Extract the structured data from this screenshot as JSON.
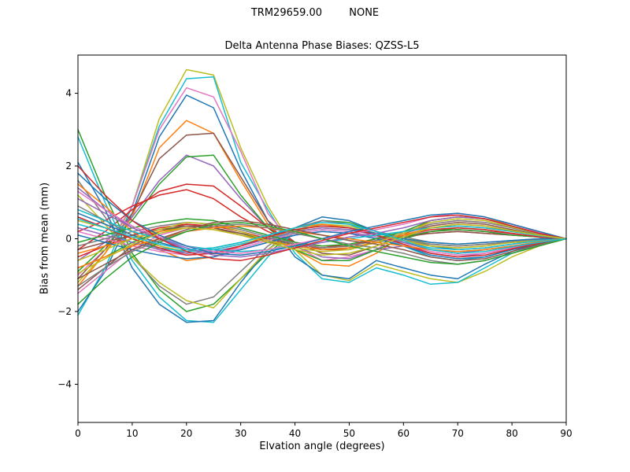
{
  "header": {
    "model": "TRM29659.00",
    "radome": "NONE"
  },
  "chart_data": {
    "type": "line",
    "title": "Delta Antenna Phase Biases: QZSS-L5",
    "xlabel": "Elvation angle (degrees)",
    "ylabel": "Bias from mean (mm)",
    "xlim": [
      0,
      90
    ],
    "ylim": [
      -5.05,
      5.05
    ],
    "xticks": [
      0,
      10,
      20,
      30,
      40,
      50,
      60,
      70,
      80,
      90
    ],
    "yticks": [
      -4,
      -2,
      0,
      2,
      4
    ],
    "grid": false,
    "legend": "none",
    "x": [
      0,
      5,
      10,
      15,
      20,
      25,
      30,
      35,
      40,
      45,
      50,
      55,
      60,
      65,
      70,
      75,
      80,
      85,
      90
    ],
    "series": [
      {
        "color": "#bcbd22",
        "values": [
          -1.2,
          -0.4,
          0.9,
          3.3,
          4.65,
          4.5,
          2.5,
          0.9,
          -0.3,
          -1.0,
          -1.15,
          -0.7,
          -0.9,
          -1.1,
          -1.2,
          -0.9,
          -0.5,
          -0.2,
          0
        ]
      },
      {
        "color": "#17becf",
        "values": [
          -2.1,
          -0.8,
          0.9,
          3.1,
          4.4,
          4.45,
          2.1,
          0.8,
          -0.4,
          -1.1,
          -1.2,
          -0.8,
          -1.0,
          -1.25,
          -1.2,
          -0.8,
          -0.4,
          -0.15,
          0
        ]
      },
      {
        "color": "#e377c2",
        "values": [
          -1.0,
          -0.3,
          0.9,
          3.0,
          4.15,
          3.9,
          2.4,
          0.7,
          -0.2,
          -0.6,
          -0.5,
          -0.3,
          0.2,
          0.4,
          0.5,
          0.45,
          0.3,
          0.15,
          0
        ]
      },
      {
        "color": "#1f77b4",
        "values": [
          -2.0,
          -0.9,
          0.7,
          2.8,
          3.95,
          3.6,
          1.9,
          0.5,
          -0.5,
          -1.0,
          -1.1,
          -0.6,
          -0.8,
          -1.0,
          -1.1,
          -0.7,
          -0.35,
          -0.1,
          0
        ]
      },
      {
        "color": "#ff7f0e",
        "values": [
          -1.3,
          -0.4,
          0.6,
          2.5,
          3.25,
          2.9,
          1.6,
          0.4,
          -0.3,
          -0.7,
          -0.75,
          -0.4,
          0.1,
          0.5,
          0.6,
          0.55,
          0.4,
          0.2,
          0
        ]
      },
      {
        "color": "#8c564b",
        "values": [
          -1.1,
          -0.3,
          0.7,
          2.2,
          2.85,
          2.9,
          1.7,
          0.5,
          -0.1,
          -0.4,
          -0.45,
          -0.2,
          0.1,
          0.3,
          0.35,
          0.3,
          0.2,
          0.1,
          0
        ]
      },
      {
        "color": "#9467bd",
        "values": [
          -0.6,
          -0.1,
          0.6,
          1.6,
          2.3,
          2.0,
          1.1,
          0.3,
          -0.2,
          -0.5,
          -0.55,
          -0.3,
          -0.2,
          -0.4,
          -0.5,
          -0.4,
          -0.25,
          -0.1,
          0
        ]
      },
      {
        "color": "#2ca02c",
        "values": [
          -0.9,
          -0.2,
          0.5,
          1.5,
          2.25,
          2.3,
          1.2,
          0.3,
          -0.3,
          -0.6,
          -0.6,
          -0.3,
          0.0,
          0.2,
          0.3,
          0.25,
          0.15,
          0.05,
          0
        ]
      },
      {
        "color": "#d62728",
        "values": [
          -0.3,
          0.2,
          0.8,
          1.3,
          1.5,
          1.45,
          0.9,
          0.3,
          -0.1,
          -0.3,
          -0.3,
          -0.1,
          0.1,
          0.2,
          0.25,
          0.2,
          0.15,
          0.05,
          0
        ]
      },
      {
        "color": "#d62728",
        "values": [
          0.2,
          0.5,
          0.9,
          1.2,
          1.35,
          1.1,
          0.6,
          0.2,
          -0.1,
          -0.2,
          -0.2,
          0.0,
          0.1,
          0.15,
          0.2,
          0.15,
          0.1,
          0.05,
          0
        ]
      },
      {
        "color": "#2ca02c",
        "values": [
          3.0,
          1.2,
          -0.4,
          -1.4,
          -2.0,
          -1.8,
          -1.1,
          -0.4,
          0.2,
          0.5,
          0.45,
          0.2,
          -0.1,
          -0.3,
          -0.4,
          -0.3,
          -0.2,
          -0.1,
          0
        ]
      },
      {
        "color": "#17becf",
        "values": [
          2.8,
          1.0,
          -0.6,
          -1.6,
          -2.25,
          -2.3,
          -1.4,
          -0.5,
          0.2,
          0.5,
          0.4,
          0.1,
          -0.2,
          -0.5,
          -0.6,
          -0.5,
          -0.3,
          -0.1,
          0
        ]
      },
      {
        "color": "#1f77b4",
        "values": [
          2.1,
          0.8,
          -0.8,
          -1.8,
          -2.3,
          -2.25,
          -1.2,
          -0.3,
          0.3,
          0.6,
          0.5,
          0.2,
          0.0,
          -0.2,
          -0.3,
          -0.25,
          -0.15,
          -0.05,
          0
        ]
      },
      {
        "color": "#7f7f7f",
        "values": [
          1.6,
          0.6,
          -0.5,
          -1.3,
          -1.8,
          -1.6,
          -0.9,
          -0.2,
          0.3,
          0.5,
          0.4,
          0.2,
          0.05,
          -0.1,
          -0.15,
          -0.1,
          -0.05,
          0.0,
          0
        ]
      },
      {
        "color": "#bcbd22",
        "values": [
          1.2,
          0.4,
          -0.5,
          -1.2,
          -1.7,
          -1.9,
          -1.1,
          -0.3,
          0.2,
          0.4,
          0.35,
          0.15,
          0.0,
          -0.15,
          -0.2,
          -0.15,
          -0.1,
          -0.05,
          0
        ]
      },
      {
        "color": "#ff7f0e",
        "values": [
          1.5,
          0.9,
          0.2,
          -0.3,
          -0.6,
          -0.5,
          -0.2,
          0.1,
          0.3,
          0.4,
          0.3,
          0.1,
          -0.1,
          -0.2,
          -0.25,
          -0.2,
          -0.1,
          -0.05,
          0
        ]
      },
      {
        "color": "#9467bd",
        "values": [
          1.4,
          0.8,
          0.3,
          0.0,
          -0.3,
          -0.4,
          -0.3,
          -0.1,
          0.1,
          0.2,
          0.15,
          0.05,
          -0.05,
          -0.15,
          -0.2,
          -0.15,
          -0.1,
          -0.05,
          0
        ]
      },
      {
        "color": "#8c564b",
        "values": [
          -1.4,
          -0.8,
          -0.2,
          0.2,
          0.4,
          0.3,
          0.1,
          -0.1,
          -0.2,
          -0.3,
          -0.25,
          -0.1,
          0.05,
          0.15,
          0.2,
          0.15,
          0.1,
          0.05,
          0
        ]
      },
      {
        "color": "#e377c2",
        "values": [
          -1.5,
          -0.9,
          -0.3,
          0.1,
          0.3,
          0.4,
          0.3,
          0.1,
          -0.1,
          -0.25,
          -0.2,
          -0.05,
          0.1,
          0.2,
          0.25,
          0.2,
          0.12,
          0.05,
          0
        ]
      },
      {
        "color": "#7f7f7f",
        "values": [
          0.9,
          0.5,
          0.1,
          -0.2,
          -0.4,
          -0.35,
          -0.2,
          0.0,
          0.2,
          0.3,
          0.25,
          0.1,
          -0.05,
          -0.15,
          -0.2,
          -0.15,
          -0.08,
          -0.03,
          0
        ]
      },
      {
        "color": "#1f77b4",
        "values": [
          0.7,
          0.4,
          0.1,
          -0.1,
          -0.3,
          -0.25,
          -0.1,
          0.1,
          0.25,
          0.35,
          0.3,
          0.15,
          0.0,
          -0.1,
          -0.15,
          -0.1,
          -0.05,
          0.0,
          0
        ]
      },
      {
        "color": "#2ca02c",
        "values": [
          -0.8,
          -0.5,
          -0.1,
          0.2,
          0.35,
          0.3,
          0.15,
          -0.05,
          -0.2,
          -0.3,
          -0.25,
          -0.1,
          0.05,
          0.2,
          0.25,
          0.2,
          0.1,
          0.05,
          0
        ]
      },
      {
        "color": "#d62728",
        "values": [
          -0.5,
          -0.2,
          0.1,
          0.3,
          0.4,
          0.35,
          0.2,
          0.0,
          -0.15,
          -0.25,
          -0.2,
          -0.05,
          0.1,
          0.25,
          0.3,
          0.25,
          0.15,
          0.05,
          0
        ]
      },
      {
        "color": "#bcbd22",
        "values": [
          0.5,
          0.3,
          0.0,
          -0.2,
          -0.35,
          -0.3,
          -0.15,
          0.05,
          0.2,
          0.3,
          0.25,
          0.1,
          -0.05,
          -0.2,
          -0.25,
          -0.2,
          -0.1,
          -0.05,
          0
        ]
      },
      {
        "color": "#17becf",
        "values": [
          0.4,
          0.2,
          -0.1,
          -0.25,
          -0.35,
          -0.3,
          -0.15,
          0.0,
          0.15,
          0.25,
          0.2,
          0.05,
          -0.1,
          -0.25,
          -0.3,
          -0.25,
          -0.15,
          -0.05,
          0
        ]
      },
      {
        "color": "#ff7f0e",
        "values": [
          -0.4,
          -0.2,
          0.0,
          0.2,
          0.3,
          0.25,
          0.1,
          -0.05,
          -0.2,
          -0.3,
          -0.25,
          -0.1,
          0.1,
          0.3,
          0.4,
          0.35,
          0.2,
          0.1,
          0
        ]
      },
      {
        "color": "#9467bd",
        "values": [
          0.3,
          0.1,
          -0.1,
          -0.3,
          -0.4,
          -0.35,
          -0.2,
          0.0,
          0.2,
          0.3,
          0.25,
          0.1,
          -0.1,
          -0.3,
          -0.4,
          -0.3,
          -0.2,
          -0.1,
          0
        ]
      },
      {
        "color": "#8c564b",
        "values": [
          -0.3,
          -0.1,
          0.1,
          0.25,
          0.35,
          0.3,
          0.15,
          0.0,
          -0.15,
          -0.25,
          -0.2,
          -0.05,
          0.15,
          0.35,
          0.45,
          0.4,
          0.25,
          0.1,
          0
        ]
      },
      {
        "color": "#e377c2",
        "values": [
          0.2,
          0.0,
          -0.2,
          -0.35,
          -0.45,
          -0.4,
          -0.25,
          -0.05,
          0.15,
          0.25,
          0.2,
          0.05,
          -0.15,
          -0.35,
          -0.45,
          -0.4,
          -0.25,
          -0.1,
          0
        ]
      },
      {
        "color": "#7f7f7f",
        "values": [
          -0.2,
          0.0,
          0.2,
          0.35,
          0.45,
          0.4,
          0.25,
          0.05,
          -0.15,
          -0.25,
          -0.2,
          -0.05,
          0.15,
          0.4,
          0.5,
          0.45,
          0.3,
          0.12,
          0
        ]
      },
      {
        "color": "#1f77b4",
        "values": [
          0.1,
          -0.1,
          -0.3,
          -0.45,
          -0.55,
          -0.5,
          -0.3,
          -0.1,
          0.1,
          0.2,
          0.15,
          0.0,
          -0.2,
          -0.45,
          -0.55,
          -0.5,
          -0.3,
          -0.12,
          0
        ]
      },
      {
        "color": "#2ca02c",
        "values": [
          -0.1,
          0.1,
          0.3,
          0.45,
          0.55,
          0.5,
          0.3,
          0.1,
          -0.1,
          -0.2,
          -0.15,
          0.0,
          0.2,
          0.5,
          0.6,
          0.55,
          0.35,
          0.15,
          0
        ]
      },
      {
        "color": "#d62728",
        "values": [
          0.6,
          0.3,
          0.0,
          -0.25,
          -0.45,
          -0.4,
          -0.2,
          0.05,
          0.25,
          0.35,
          0.3,
          0.1,
          -0.15,
          -0.4,
          -0.5,
          -0.45,
          -0.28,
          -0.12,
          0
        ]
      },
      {
        "color": "#bcbd22",
        "values": [
          -0.6,
          -0.3,
          0.0,
          0.25,
          0.45,
          0.4,
          0.2,
          -0.05,
          -0.25,
          -0.35,
          -0.3,
          -0.1,
          0.15,
          0.45,
          0.55,
          0.5,
          0.32,
          0.14,
          0
        ]
      },
      {
        "color": "#17becf",
        "values": [
          0.8,
          0.5,
          0.2,
          0.0,
          -0.2,
          -0.3,
          -0.35,
          -0.3,
          -0.2,
          -0.1,
          0.0,
          0.1,
          0.2,
          0.3,
          0.35,
          0.3,
          0.2,
          0.08,
          0
        ]
      },
      {
        "color": "#ff7f0e",
        "values": [
          -0.8,
          -0.5,
          -0.2,
          0.0,
          0.2,
          0.3,
          0.35,
          0.3,
          0.2,
          0.1,
          0.0,
          -0.1,
          -0.2,
          -0.3,
          -0.35,
          -0.3,
          -0.2,
          -0.08,
          0
        ]
      },
      {
        "color": "#9467bd",
        "values": [
          1.1,
          0.7,
          0.3,
          0.0,
          -0.25,
          -0.45,
          -0.5,
          -0.4,
          -0.25,
          -0.1,
          0.05,
          0.15,
          0.3,
          0.5,
          0.6,
          0.55,
          0.35,
          0.15,
          0
        ]
      },
      {
        "color": "#8c564b",
        "values": [
          -1.1,
          -0.7,
          -0.3,
          0.0,
          0.25,
          0.45,
          0.5,
          0.4,
          0.25,
          0.1,
          -0.05,
          -0.15,
          -0.3,
          -0.5,
          -0.6,
          -0.55,
          -0.35,
          -0.15,
          0
        ]
      },
      {
        "color": "#e377c2",
        "values": [
          1.3,
          0.8,
          0.35,
          0.05,
          -0.2,
          -0.35,
          -0.4,
          -0.3,
          -0.15,
          0.0,
          0.15,
          0.25,
          0.4,
          0.6,
          0.7,
          0.6,
          0.4,
          0.18,
          0
        ]
      },
      {
        "color": "#7f7f7f",
        "values": [
          -1.3,
          -0.8,
          -0.35,
          -0.05,
          0.2,
          0.35,
          0.4,
          0.3,
          0.15,
          0.0,
          -0.15,
          -0.25,
          -0.4,
          -0.6,
          -0.7,
          -0.6,
          -0.4,
          -0.18,
          0
        ]
      },
      {
        "color": "#1f77b4",
        "values": [
          1.8,
          1.1,
          0.5,
          0.1,
          -0.2,
          -0.4,
          -0.45,
          -0.35,
          -0.2,
          0.0,
          0.2,
          0.35,
          0.5,
          0.65,
          0.7,
          0.6,
          0.4,
          0.2,
          0
        ]
      },
      {
        "color": "#2ca02c",
        "values": [
          -1.8,
          -1.1,
          -0.5,
          -0.1,
          0.2,
          0.4,
          0.45,
          0.35,
          0.2,
          0.0,
          -0.2,
          -0.35,
          -0.5,
          -0.65,
          -0.7,
          -0.6,
          -0.4,
          -0.2,
          0
        ]
      },
      {
        "color": "#d62728",
        "values": [
          2.0,
          1.2,
          0.5,
          0.0,
          -0.35,
          -0.55,
          -0.6,
          -0.45,
          -0.25,
          -0.05,
          0.15,
          0.3,
          0.45,
          0.6,
          0.65,
          0.55,
          0.35,
          0.15,
          0
        ]
      },
      {
        "color": "#bcbd22",
        "values": [
          -0.95,
          -0.55,
          -0.15,
          0.15,
          0.3,
          0.25,
          0.1,
          -0.1,
          -0.3,
          -0.45,
          -0.4,
          -0.2,
          0.05,
          0.3,
          0.4,
          0.35,
          0.22,
          0.1,
          0
        ]
      },
      {
        "color": "#17becf",
        "values": [
          0.55,
          0.3,
          0.05,
          -0.15,
          -0.3,
          -0.25,
          -0.1,
          0.1,
          0.3,
          0.45,
          0.4,
          0.2,
          -0.05,
          -0.3,
          -0.4,
          -0.35,
          -0.22,
          -0.1,
          0
        ]
      }
    ]
  }
}
